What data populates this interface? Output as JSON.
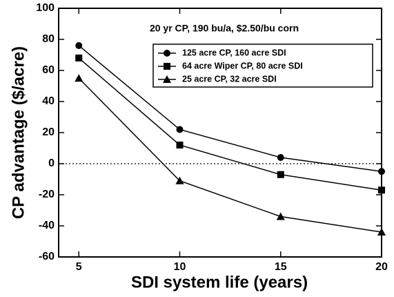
{
  "chart_data": {
    "type": "line",
    "title": "20 yr CP,   190 bu/a, $2.50/bu corn",
    "x_label": "SDI system life (years)",
    "y_label": "CP advantage ($/acre)",
    "x": [
      5,
      10,
      15,
      20
    ],
    "series": [
      {
        "name": "125 acre CP,   160 acre SDI",
        "color": "#000000",
        "marker": "circle",
        "values": [
          76,
          22,
          4,
          -5
        ]
      },
      {
        "name": "64 acre Wiper CP,   80 acre SDI",
        "color": "#000000",
        "marker": "square",
        "values": [
          68,
          12,
          -7,
          -17
        ]
      },
      {
        "name": "25 acre CP,   32 acre SDI",
        "color": "#000000",
        "marker": "triangle",
        "values": [
          55,
          -11,
          -34,
          -44
        ]
      }
    ],
    "xlim": [
      4,
      20
    ],
    "xticks": [
      5,
      10,
      15,
      20
    ],
    "ylim": [
      -60,
      100
    ],
    "yticks": [
      -60,
      -40,
      -20,
      0,
      20,
      40,
      60,
      80,
      100
    ],
    "reference_line": 0,
    "legend": "upper right"
  }
}
